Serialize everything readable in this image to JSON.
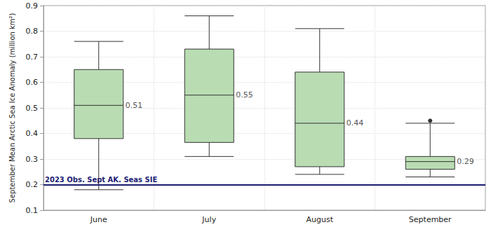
{
  "chart_data": {
    "type": "boxplot",
    "y_label": "September Mean Arctic Sea Ice Anomaly (million km²)",
    "categories": [
      "June",
      "July",
      "August",
      "September"
    ],
    "series": [
      {
        "color": "#b9dcb3",
        "boxes": [
          [
            0.18,
            0.38,
            0.51,
            0.65,
            0.76
          ],
          [
            0.31,
            0.365,
            0.55,
            0.73,
            0.86
          ],
          [
            0.24,
            0.27,
            0.44,
            0.64,
            0.81
          ],
          [
            0.23,
            0.26,
            0.29,
            0.31,
            0.44
          ]
        ],
        "outliers": [
          [
            3,
            0.45
          ]
        ]
      }
    ],
    "data_labels": true,
    "annotations": [
      {
        "text": "2023 Obs. Sept AK. Seas SIE",
        "y": 0.2,
        "color": "#1c1c74"
      }
    ],
    "ylim": [
      0.1,
      0.9
    ],
    "yticks": [
      0.1,
      0.2,
      0.3,
      0.4,
      0.5,
      0.6,
      0.7,
      0.8,
      0.9
    ],
    "grid": true
  }
}
